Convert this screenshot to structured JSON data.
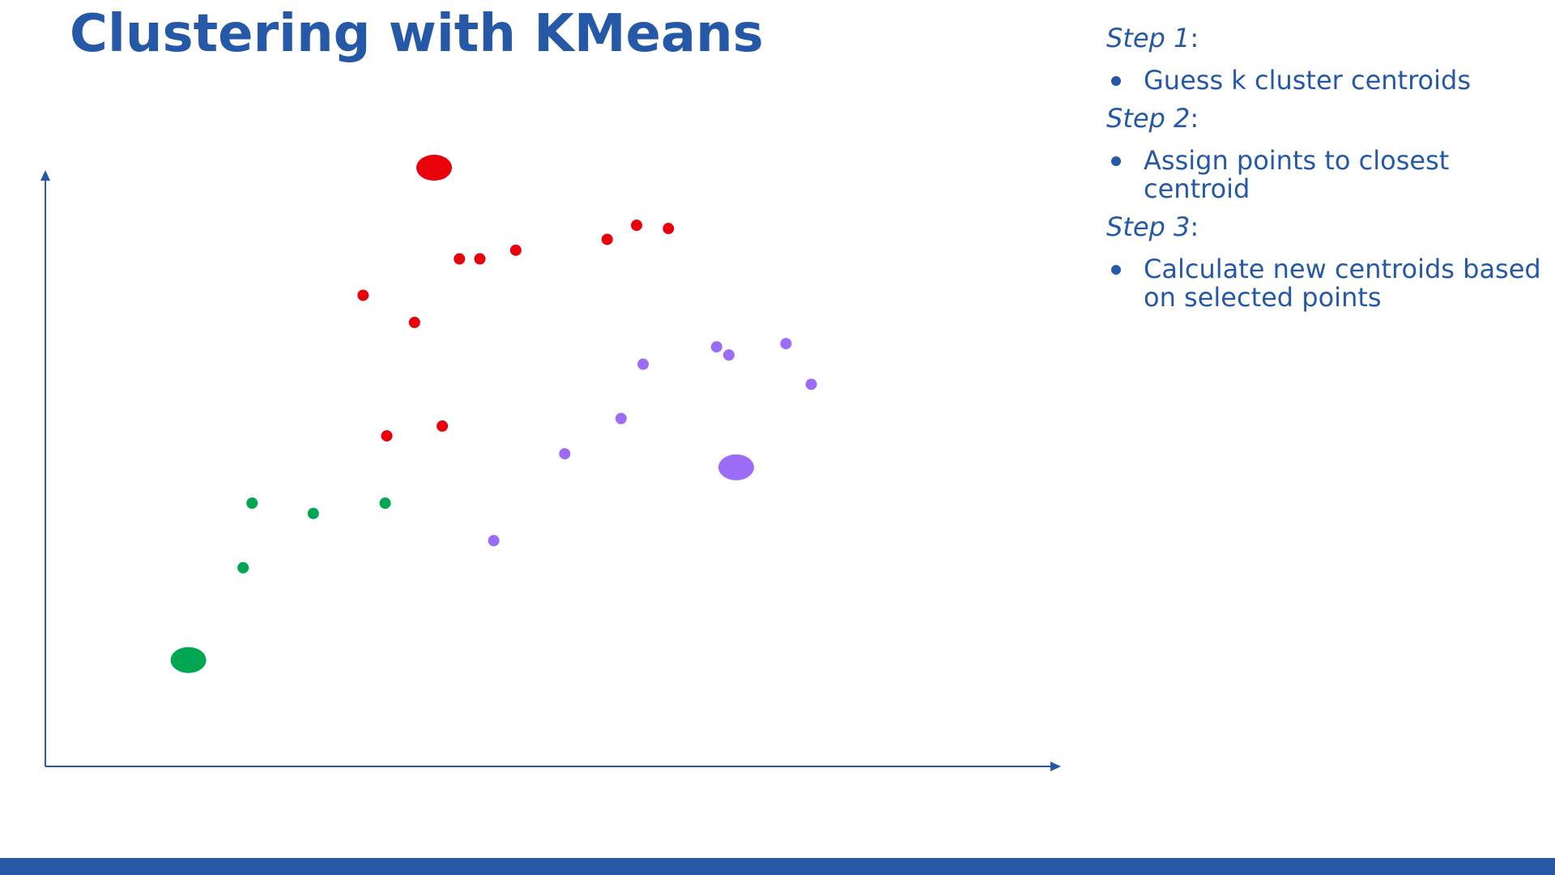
{
  "slide": {
    "title": "Clustering with KMeans",
    "accent_color": "#2559a7",
    "steps": [
      {
        "heading": "Step 1",
        "suffix": ":",
        "bullet": "Guess k cluster centroids"
      },
      {
        "heading": "Step 2",
        "suffix": ":",
        "bullet": "Assign points to closest centroid"
      },
      {
        "heading": "Step 3",
        "suffix": ":",
        "bullet": "Calculate new centroids based on selected points"
      }
    ]
  },
  "chart_data": {
    "type": "scatter",
    "title": "",
    "xlabel": "",
    "ylabel": "",
    "xlim": [
      0,
      100
    ],
    "ylim": [
      0,
      100
    ],
    "grid": false,
    "legend": "none",
    "axis_color": "#2559a7",
    "series": [
      {
        "color": "#e8000b",
        "x": [
          41,
          35.5,
          43.5,
          47.9,
          59.1,
          62.7,
          66.6,
          29.2,
          38.9,
          32.1
        ],
        "y": [
          83.2,
          71.5,
          83.2,
          84.8,
          86.8,
          89.4,
          88.8,
          76.5,
          52.4,
          50.6
        ],
        "centroid": {
          "x": 37.9,
          "y": 100
        }
      },
      {
        "color": "#9b6cf5",
        "x": [
          45.2,
          53.9,
          60.8,
          63.5,
          74,
          81,
          84.1,
          72.5
        ],
        "y": [
          31.3,
          47.3,
          53.8,
          63.8,
          65.5,
          67.6,
          60.1,
          67
        ],
        "centroid": {
          "x": 74.9,
          "y": 44.8
        }
      },
      {
        "color": "#00a651",
        "x": [
          15.6,
          23.1,
          31.9,
          14.5
        ],
        "y": [
          38.2,
          36.3,
          38.2,
          26.3
        ],
        "centroid": {
          "x": 7.8,
          "y": 9.3
        }
      }
    ]
  }
}
